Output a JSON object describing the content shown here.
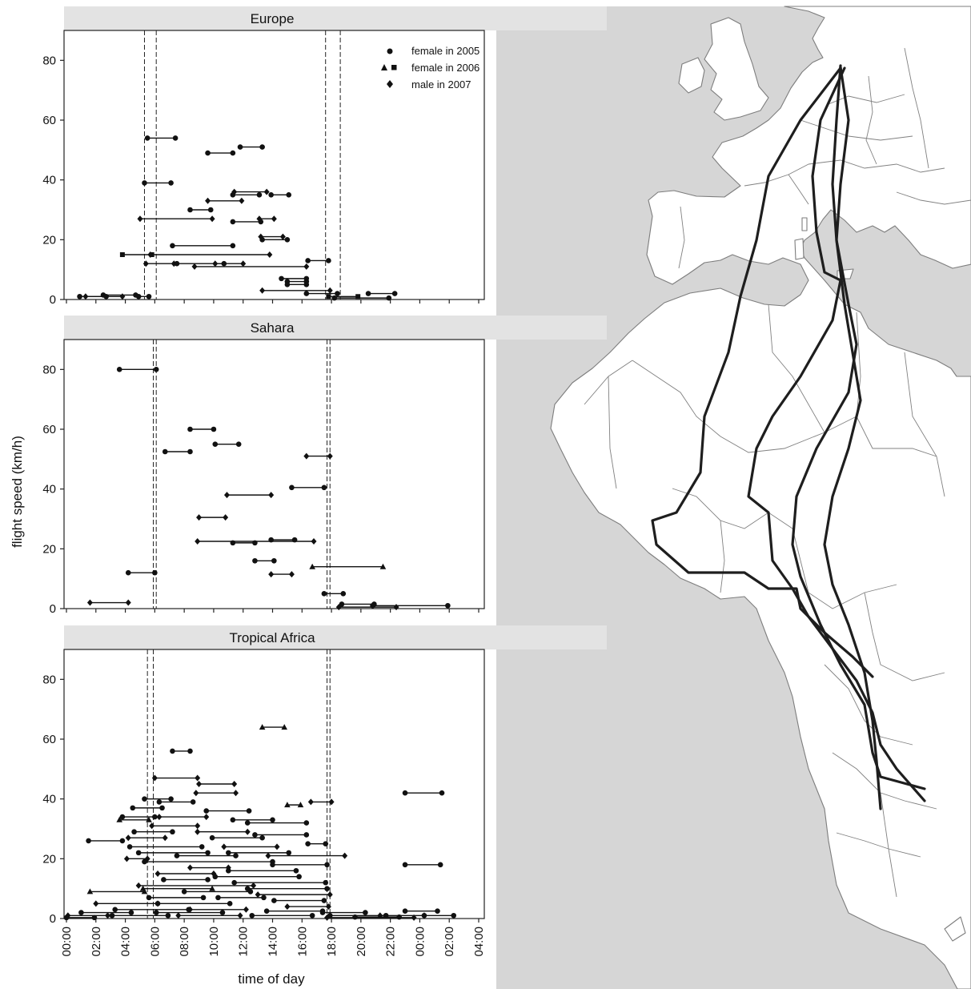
{
  "chart_data": [
    {
      "type": "scatter",
      "panel_title": "Europe",
      "xlabel": "time of day",
      "ylabel": "flight speed (km/h)",
      "xlim": [
        0,
        28
      ],
      "ylim": [
        0,
        90
      ],
      "yticks": [
        0,
        20,
        40,
        60,
        80
      ],
      "x_tick_labels": [
        "00:00",
        "02:00",
        "04:00",
        "06:00",
        "08:00",
        "10:00",
        "12:00",
        "14:00",
        "16:00",
        "18:00",
        "20:00",
        "22:00",
        "00:00",
        "02:00",
        "04:00"
      ],
      "grid": false,
      "dashed_lines_hours": [
        5.3,
        6.1,
        17.6,
        18.6
      ],
      "legend": {
        "placement": "top-right",
        "entries": [
          {
            "label": "female in 2005",
            "markers": [
              "circle"
            ]
          },
          {
            "label": "female in 2006",
            "markers": [
              "triangle",
              "square"
            ]
          },
          {
            "label": "male in 2007",
            "markers": [
              "diamond"
            ]
          }
        ]
      },
      "segments": [
        {
          "start": 5.5,
          "end": 7.4,
          "speed": 54,
          "marker": "circle"
        },
        {
          "start": 9.6,
          "end": 11.3,
          "speed": 49,
          "marker": "circle"
        },
        {
          "start": 11.8,
          "end": 13.3,
          "speed": 51,
          "marker": "circle"
        },
        {
          "start": 5.3,
          "end": 7.1,
          "speed": 39,
          "marker": "circle"
        },
        {
          "start": 11.4,
          "end": 13.6,
          "speed": 36,
          "marker": "diamond"
        },
        {
          "start": 11.3,
          "end": 13.1,
          "speed": 35,
          "marker": "circle"
        },
        {
          "start": 13.9,
          "end": 15.1,
          "speed": 35,
          "marker": "circle"
        },
        {
          "start": 9.6,
          "end": 11.9,
          "speed": 33,
          "marker": "diamond"
        },
        {
          "start": 8.4,
          "end": 9.8,
          "speed": 30,
          "marker": "circle"
        },
        {
          "start": 5.0,
          "end": 9.9,
          "speed": 27,
          "marker": "diamond"
        },
        {
          "start": 11.3,
          "end": 13.2,
          "speed": 26,
          "marker": "circle"
        },
        {
          "start": 13.1,
          "end": 14.1,
          "speed": 27,
          "marker": "diamond"
        },
        {
          "start": 13.2,
          "end": 14.7,
          "speed": 21,
          "marker": "diamond"
        },
        {
          "start": 13.3,
          "end": 15.0,
          "speed": 20,
          "marker": "circle"
        },
        {
          "start": 7.2,
          "end": 11.3,
          "speed": 18,
          "marker": "circle"
        },
        {
          "start": 3.8,
          "end": 5.8,
          "speed": 15,
          "marker": "square"
        },
        {
          "start": 5.7,
          "end": 13.8,
          "speed": 15,
          "marker": "diamond"
        },
        {
          "start": 5.4,
          "end": 7.3,
          "speed": 12,
          "marker": "diamond"
        },
        {
          "start": 7.5,
          "end": 10.7,
          "speed": 12,
          "marker": "circle"
        },
        {
          "start": 10.1,
          "end": 12.0,
          "speed": 12,
          "marker": "diamond"
        },
        {
          "start": 8.7,
          "end": 16.3,
          "speed": 11,
          "marker": "diamond"
        },
        {
          "start": 16.4,
          "end": 17.8,
          "speed": 13,
          "marker": "circle"
        },
        {
          "start": 14.6,
          "end": 16.3,
          "speed": 7,
          "marker": "circle"
        },
        {
          "start": 15.0,
          "end": 16.3,
          "speed": 6,
          "marker": "circle"
        },
        {
          "start": 15.0,
          "end": 16.3,
          "speed": 5,
          "marker": "circle"
        },
        {
          "start": 13.3,
          "end": 17.9,
          "speed": 3,
          "marker": "diamond"
        },
        {
          "start": 16.3,
          "end": 18.4,
          "speed": 2,
          "marker": "circle"
        },
        {
          "start": 2.5,
          "end": 4.7,
          "speed": 1.5,
          "marker": "circle"
        },
        {
          "start": 1.3,
          "end": 3.8,
          "speed": 1,
          "marker": "diamond"
        },
        {
          "start": 0.9,
          "end": 2.7,
          "speed": 1,
          "marker": "circle"
        },
        {
          "start": 4.9,
          "end": 5.6,
          "speed": 1,
          "marker": "circle"
        },
        {
          "start": 17.8,
          "end": 19.8,
          "speed": 1,
          "marker": "square"
        },
        {
          "start": 20.5,
          "end": 22.3,
          "speed": 2,
          "marker": "circle"
        },
        {
          "start": 18.2,
          "end": 21.9,
          "speed": 0.5,
          "marker": "circle"
        }
      ]
    },
    {
      "type": "scatter",
      "panel_title": "Sahara",
      "xlabel": "time of day",
      "ylabel": "flight speed (km/h)",
      "xlim": [
        0,
        28
      ],
      "ylim": [
        0,
        90
      ],
      "yticks": [
        0,
        20,
        40,
        60,
        80
      ],
      "x_tick_labels": [
        "00:00",
        "02:00",
        "04:00",
        "06:00",
        "08:00",
        "10:00",
        "12:00",
        "14:00",
        "16:00",
        "18:00",
        "20:00",
        "22:00",
        "00:00",
        "02:00",
        "04:00"
      ],
      "grid": false,
      "dashed_lines_hours": [
        5.9,
        6.1,
        17.7,
        17.9
      ],
      "segments": [
        {
          "start": 3.6,
          "end": 6.1,
          "speed": 80,
          "marker": "circle"
        },
        {
          "start": 8.4,
          "end": 10.0,
          "speed": 60,
          "marker": "circle"
        },
        {
          "start": 10.1,
          "end": 11.7,
          "speed": 55,
          "marker": "circle"
        },
        {
          "start": 6.7,
          "end": 8.4,
          "speed": 52.5,
          "marker": "circle"
        },
        {
          "start": 16.3,
          "end": 17.9,
          "speed": 51,
          "marker": "diamond"
        },
        {
          "start": 15.3,
          "end": 17.5,
          "speed": 40.5,
          "marker": "circle"
        },
        {
          "start": 10.9,
          "end": 13.9,
          "speed": 38,
          "marker": "diamond"
        },
        {
          "start": 9.0,
          "end": 10.8,
          "speed": 30.5,
          "marker": "diamond"
        },
        {
          "start": 8.9,
          "end": 16.8,
          "speed": 22.5,
          "marker": "diamond"
        },
        {
          "start": 11.3,
          "end": 12.8,
          "speed": 22,
          "marker": "circle"
        },
        {
          "start": 13.9,
          "end": 15.5,
          "speed": 23,
          "marker": "circle"
        },
        {
          "start": 12.8,
          "end": 14.1,
          "speed": 16,
          "marker": "circle"
        },
        {
          "start": 13.9,
          "end": 15.3,
          "speed": 11.5,
          "marker": "diamond"
        },
        {
          "start": 4.2,
          "end": 6.0,
          "speed": 12,
          "marker": "circle"
        },
        {
          "start": 16.7,
          "end": 21.5,
          "speed": 14,
          "marker": "triangle"
        },
        {
          "start": 17.5,
          "end": 18.8,
          "speed": 5,
          "marker": "circle"
        },
        {
          "start": 1.6,
          "end": 4.2,
          "speed": 2,
          "marker": "diamond"
        },
        {
          "start": 18.7,
          "end": 20.9,
          "speed": 1.5,
          "marker": "circle"
        },
        {
          "start": 20.8,
          "end": 25.9,
          "speed": 1,
          "marker": "circle"
        },
        {
          "start": 18.5,
          "end": 22.4,
          "speed": 0.5,
          "marker": "diamond"
        }
      ]
    },
    {
      "type": "scatter",
      "panel_title": "Tropical Africa",
      "xlabel": "time of day",
      "ylabel": "flight speed (km/h)",
      "xlim": [
        0,
        28
      ],
      "ylim": [
        0,
        90
      ],
      "yticks": [
        0,
        20,
        40,
        60,
        80
      ],
      "x_tick_labels": [
        "00:00",
        "02:00",
        "04:00",
        "06:00",
        "08:00",
        "10:00",
        "12:00",
        "14:00",
        "16:00",
        "18:00",
        "20:00",
        "22:00",
        "00:00",
        "02:00",
        "04:00"
      ],
      "grid": false,
      "dashed_lines_hours": [
        5.5,
        5.9,
        17.7,
        17.9
      ],
      "segments": [
        {
          "start": 13.3,
          "end": 14.8,
          "speed": 64,
          "marker": "triangle"
        },
        {
          "start": 7.2,
          "end": 8.4,
          "speed": 56,
          "marker": "circle"
        },
        {
          "start": 6.0,
          "end": 8.9,
          "speed": 47,
          "marker": "diamond"
        },
        {
          "start": 9.0,
          "end": 11.4,
          "speed": 45,
          "marker": "diamond"
        },
        {
          "start": 23.0,
          "end": 25.5,
          "speed": 42,
          "marker": "circle"
        },
        {
          "start": 23.0,
          "end": 25.4,
          "speed": 18,
          "marker": "circle"
        },
        {
          "start": 1.5,
          "end": 3.8,
          "speed": 26,
          "marker": "circle"
        },
        {
          "start": 5.3,
          "end": 7.1,
          "speed": 40,
          "marker": "circle"
        },
        {
          "start": 6.3,
          "end": 8.6,
          "speed": 39,
          "marker": "circle"
        },
        {
          "start": 8.8,
          "end": 11.5,
          "speed": 42,
          "marker": "diamond"
        },
        {
          "start": 15.0,
          "end": 15.9,
          "speed": 38,
          "marker": "triangle"
        },
        {
          "start": 16.6,
          "end": 18.0,
          "speed": 39,
          "marker": "diamond"
        },
        {
          "start": 4.5,
          "end": 6.5,
          "speed": 37,
          "marker": "circle"
        },
        {
          "start": 9.5,
          "end": 12.4,
          "speed": 36,
          "marker": "circle"
        },
        {
          "start": 3.8,
          "end": 6.0,
          "speed": 34,
          "marker": "circle"
        },
        {
          "start": 6.3,
          "end": 9.5,
          "speed": 34,
          "marker": "diamond"
        },
        {
          "start": 11.3,
          "end": 14.0,
          "speed": 33,
          "marker": "circle"
        },
        {
          "start": 3.6,
          "end": 5.6,
          "speed": 33,
          "marker": "triangle"
        },
        {
          "start": 12.3,
          "end": 16.3,
          "speed": 32,
          "marker": "circle"
        },
        {
          "start": 5.8,
          "end": 8.9,
          "speed": 31,
          "marker": "diamond"
        },
        {
          "start": 4.6,
          "end": 7.2,
          "speed": 29,
          "marker": "circle"
        },
        {
          "start": 8.9,
          "end": 12.3,
          "speed": 29,
          "marker": "diamond"
        },
        {
          "start": 12.8,
          "end": 16.3,
          "speed": 28,
          "marker": "circle"
        },
        {
          "start": 4.2,
          "end": 6.7,
          "speed": 27,
          "marker": "diamond"
        },
        {
          "start": 9.9,
          "end": 13.3,
          "speed": 27,
          "marker": "circle"
        },
        {
          "start": 16.4,
          "end": 17.6,
          "speed": 25,
          "marker": "circle"
        },
        {
          "start": 4.3,
          "end": 9.2,
          "speed": 24,
          "marker": "circle"
        },
        {
          "start": 10.7,
          "end": 14.3,
          "speed": 24,
          "marker": "diamond"
        },
        {
          "start": 4.9,
          "end": 9.6,
          "speed": 22,
          "marker": "circle"
        },
        {
          "start": 11.0,
          "end": 15.1,
          "speed": 22,
          "marker": "circle"
        },
        {
          "start": 4.1,
          "end": 5.5,
          "speed": 20,
          "marker": "diamond"
        },
        {
          "start": 7.5,
          "end": 11.5,
          "speed": 21,
          "marker": "circle"
        },
        {
          "start": 13.7,
          "end": 18.9,
          "speed": 21,
          "marker": "diamond"
        },
        {
          "start": 5.3,
          "end": 14.0,
          "speed": 19,
          "marker": "circle"
        },
        {
          "start": 14.0,
          "end": 17.7,
          "speed": 18,
          "marker": "circle"
        },
        {
          "start": 8.4,
          "end": 11.0,
          "speed": 17,
          "marker": "diamond"
        },
        {
          "start": 11.0,
          "end": 15.6,
          "speed": 16,
          "marker": "circle"
        },
        {
          "start": 6.2,
          "end": 10.0,
          "speed": 15,
          "marker": "diamond"
        },
        {
          "start": 10.1,
          "end": 15.8,
          "speed": 14,
          "marker": "circle"
        },
        {
          "start": 6.6,
          "end": 9.6,
          "speed": 13,
          "marker": "circle"
        },
        {
          "start": 11.4,
          "end": 17.6,
          "speed": 12,
          "marker": "circle"
        },
        {
          "start": 4.9,
          "end": 12.7,
          "speed": 11,
          "marker": "diamond"
        },
        {
          "start": 5.2,
          "end": 9.9,
          "speed": 10,
          "marker": "triangle"
        },
        {
          "start": 12.3,
          "end": 17.7,
          "speed": 10,
          "marker": "circle"
        },
        {
          "start": 8.0,
          "end": 12.5,
          "speed": 9,
          "marker": "circle"
        },
        {
          "start": 1.6,
          "end": 5.3,
          "speed": 9,
          "marker": "triangle"
        },
        {
          "start": 13.0,
          "end": 17.9,
          "speed": 8,
          "marker": "diamond"
        },
        {
          "start": 5.6,
          "end": 9.3,
          "speed": 7,
          "marker": "circle"
        },
        {
          "start": 10.3,
          "end": 13.4,
          "speed": 7,
          "marker": "circle"
        },
        {
          "start": 14.1,
          "end": 17.5,
          "speed": 6,
          "marker": "circle"
        },
        {
          "start": 2.0,
          "end": 6.2,
          "speed": 5,
          "marker": "diamond"
        },
        {
          "start": 6.2,
          "end": 11.1,
          "speed": 5,
          "marker": "circle"
        },
        {
          "start": 15.0,
          "end": 17.8,
          "speed": 4,
          "marker": "diamond"
        },
        {
          "start": 3.3,
          "end": 8.3,
          "speed": 3,
          "marker": "circle"
        },
        {
          "start": 8.4,
          "end": 12.2,
          "speed": 3,
          "marker": "diamond"
        },
        {
          "start": 13.6,
          "end": 17.4,
          "speed": 2.5,
          "marker": "circle"
        },
        {
          "start": 1.0,
          "end": 4.4,
          "speed": 2,
          "marker": "circle"
        },
        {
          "start": 6.1,
          "end": 10.6,
          "speed": 2,
          "marker": "circle"
        },
        {
          "start": 17.4,
          "end": 20.3,
          "speed": 2,
          "marker": "circle"
        },
        {
          "start": 23.0,
          "end": 25.2,
          "speed": 2.5,
          "marker": "circle"
        },
        {
          "start": 0.1,
          "end": 2.8,
          "speed": 1,
          "marker": "diamond"
        },
        {
          "start": 3.1,
          "end": 6.9,
          "speed": 1,
          "marker": "circle"
        },
        {
          "start": 7.6,
          "end": 11.8,
          "speed": 1,
          "marker": "diamond"
        },
        {
          "start": 12.6,
          "end": 16.7,
          "speed": 1,
          "marker": "circle"
        },
        {
          "start": 17.9,
          "end": 21.7,
          "speed": 1,
          "marker": "circle"
        },
        {
          "start": 21.3,
          "end": 24.3,
          "speed": 1,
          "marker": "diamond"
        },
        {
          "start": 24.3,
          "end": 26.3,
          "speed": 1,
          "marker": "circle"
        },
        {
          "start": 0.0,
          "end": 1.9,
          "speed": 0.3,
          "marker": "circle"
        },
        {
          "start": 17.7,
          "end": 23.6,
          "speed": 0.3,
          "marker": "diamond"
        },
        {
          "start": 19.6,
          "end": 22.6,
          "speed": 0.5,
          "marker": "circle"
        }
      ]
    }
  ],
  "map": {
    "land_color": "#ffffff",
    "sea_color": "#d6d6d6",
    "border_color": "#808080",
    "track_color": "#1e1e1e"
  }
}
